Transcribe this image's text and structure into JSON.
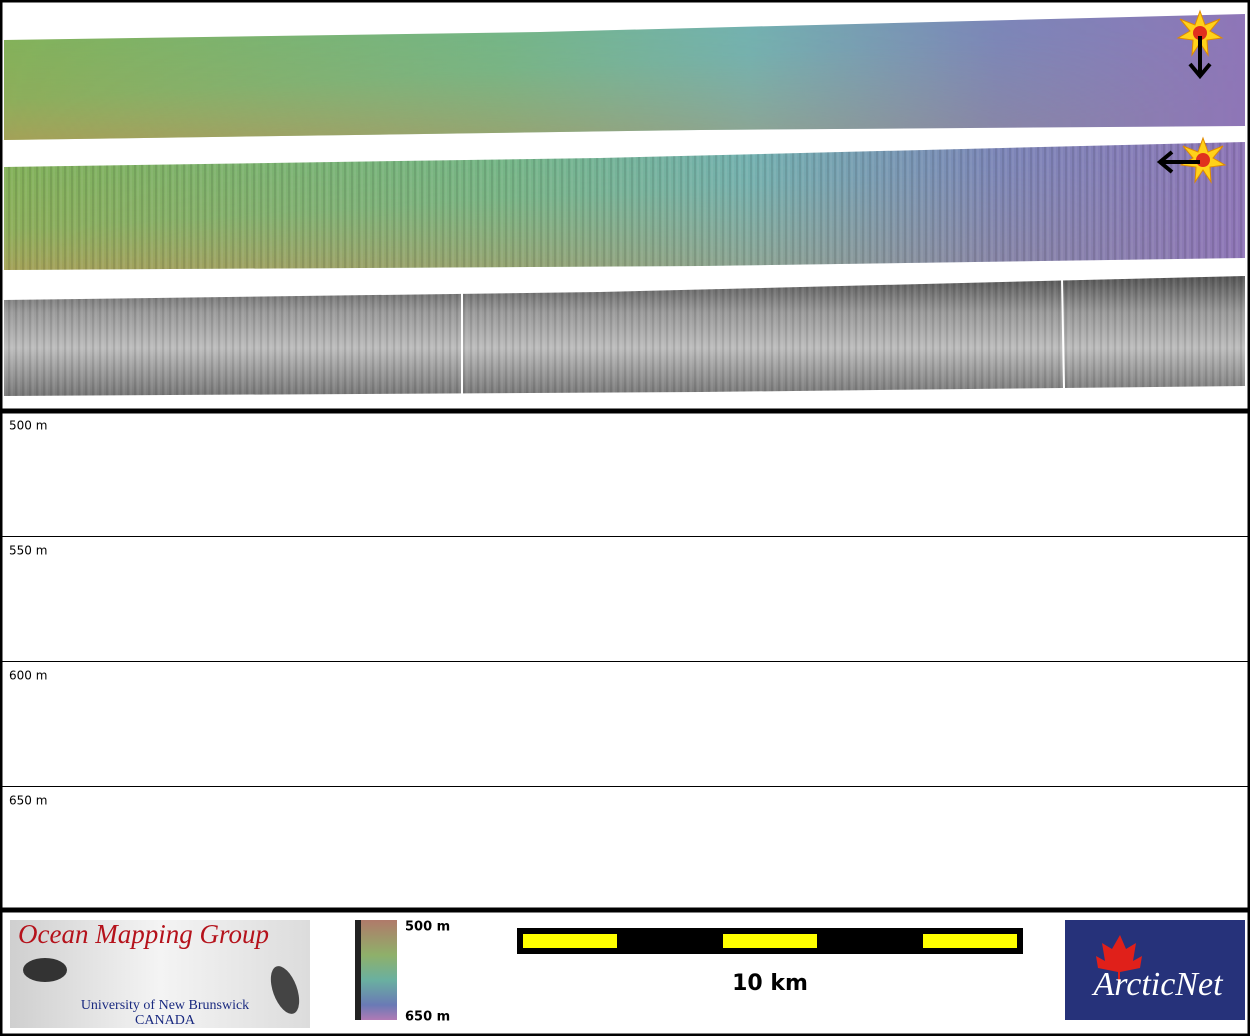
{
  "profile": {
    "depth_labels": [
      "500 m",
      "550 m",
      "600 m",
      "650 m"
    ]
  },
  "footer": {
    "logo": {
      "title": "Ocean Mapping Group",
      "university": "University of New Brunswick",
      "country": "CANADA"
    },
    "colorbar": {
      "top_label": "500 m",
      "bottom_label": "650 m"
    },
    "scale_bar": {
      "label": "10 km"
    },
    "partner_logo": {
      "text": "ArcticNet"
    }
  }
}
